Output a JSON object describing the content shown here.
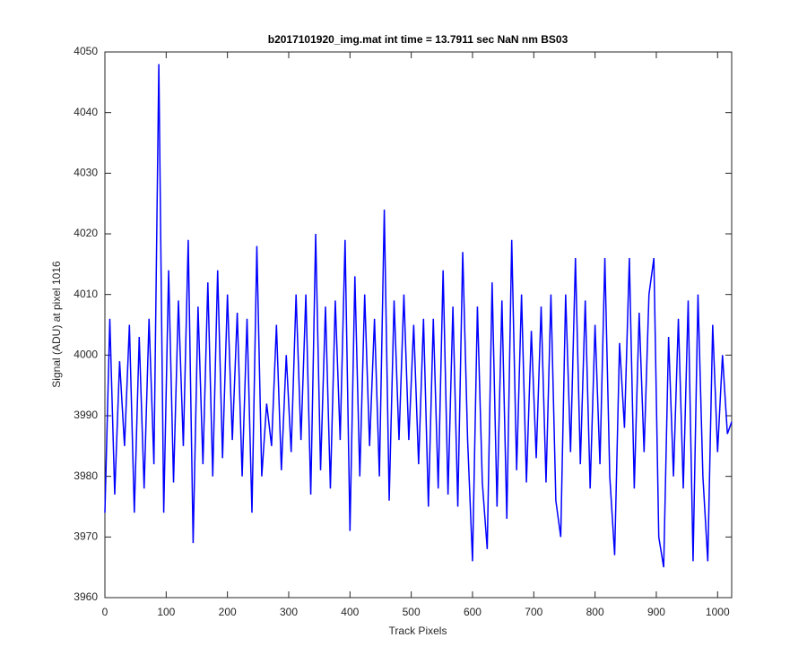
{
  "chart_data": {
    "type": "line",
    "title": "b2017101920_img.mat int time = 13.7911 sec  NaN nm BS03",
    "x_label": "Track Pixels",
    "y_label": "Signal (ADU) at pixel 1016",
    "x": [
      0,
      8,
      16,
      24,
      32,
      40,
      48,
      56,
      64,
      72,
      80,
      88,
      96,
      104,
      112,
      120,
      128,
      136,
      144,
      152,
      160,
      168,
      176,
      184,
      192,
      200,
      208,
      216,
      224,
      232,
      240,
      248,
      256,
      264,
      272,
      280,
      288,
      296,
      304,
      312,
      320,
      328,
      336,
      344,
      352,
      360,
      368,
      376,
      384,
      392,
      400,
      408,
      416,
      424,
      432,
      440,
      448,
      456,
      464,
      472,
      480,
      488,
      496,
      504,
      512,
      520,
      528,
      536,
      544,
      552,
      560,
      568,
      576,
      584,
      592,
      600,
      608,
      616,
      624,
      632,
      640,
      648,
      656,
      664,
      672,
      680,
      688,
      696,
      704,
      712,
      720,
      728,
      736,
      744,
      752,
      760,
      768,
      776,
      784,
      792,
      800,
      808,
      816,
      824,
      832,
      840,
      848,
      856,
      864,
      872,
      880,
      888,
      896,
      904,
      912,
      920,
      928,
      936,
      944,
      952,
      960,
      968,
      976,
      984,
      992,
      1000,
      1008,
      1016,
      1023
    ],
    "series": [
      {
        "name": "signal",
        "color": "#0000ff",
        "values": [
          3974,
          4006,
          3977,
          3999,
          3985,
          4005,
          3974,
          4003,
          3978,
          4006,
          3982,
          4048,
          3974,
          4014,
          3979,
          4009,
          3985,
          4019,
          3969,
          4008,
          3982,
          4012,
          3980,
          4014,
          3983,
          4010,
          3986,
          4007,
          3980,
          4006,
          3974,
          4018,
          3980,
          3992,
          3985,
          4005,
          3981,
          4000,
          3984,
          4010,
          3986,
          4010,
          3977,
          4020,
          3981,
          4008,
          3978,
          4009,
          3986,
          4019,
          3971,
          4013,
          3980,
          4010,
          3985,
          4006,
          3980,
          4024,
          3976,
          4009,
          3986,
          4010,
          3986,
          4005,
          3982,
          4006,
          3975,
          4006,
          3978,
          4014,
          3977,
          4008,
          3975,
          4017,
          3986,
          3966,
          4008,
          3979,
          3968,
          4012,
          3975,
          4009,
          3973,
          4019,
          3981,
          4010,
          3979,
          4004,
          3983,
          4008,
          3979,
          4010,
          3976,
          3970,
          4010,
          3984,
          4016,
          3982,
          4009,
          3978,
          4005,
          3982,
          4016,
          3980,
          3967,
          4002,
          3988,
          4016,
          3978,
          4007,
          3984,
          4010,
          4016,
          3970,
          3965,
          4003,
          3980,
          4006,
          3978,
          4009,
          3966,
          4010,
          3980,
          3966,
          4005,
          3984,
          4000,
          3987,
          3989
        ]
      }
    ],
    "xlim": [
      0,
      1023
    ],
    "ylim": [
      3960,
      4050
    ],
    "xticks": [
      0,
      100,
      200,
      300,
      400,
      500,
      600,
      700,
      800,
      900,
      1000
    ],
    "yticks": [
      3960,
      3970,
      3980,
      3990,
      4000,
      4010,
      4020,
      4030,
      4040,
      4050
    ]
  }
}
